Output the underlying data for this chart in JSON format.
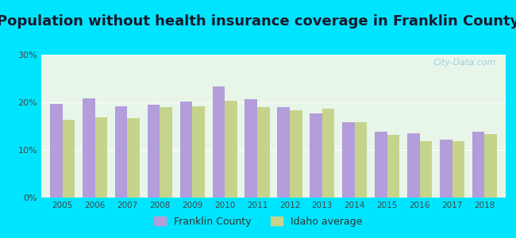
{
  "title": "Population without health insurance coverage in Franklin County",
  "years": [
    2005,
    2006,
    2007,
    2008,
    2009,
    2010,
    2011,
    2012,
    2013,
    2014,
    2015,
    2016,
    2017,
    2018
  ],
  "franklin_county": [
    19.7,
    20.9,
    19.1,
    19.5,
    20.2,
    23.3,
    20.7,
    19.0,
    17.7,
    15.9,
    13.8,
    13.5,
    12.2,
    13.8
  ],
  "idaho_average": [
    16.4,
    16.8,
    16.6,
    19.0,
    19.2,
    20.4,
    19.0,
    18.4,
    18.7,
    15.8,
    13.2,
    11.9,
    11.9,
    13.3
  ],
  "franklin_color": "#b39ddb",
  "idaho_color": "#c5d48a",
  "bg_outer": "#00e5ff",
  "bg_inner": "#e8f5e9",
  "ylim": [
    0,
    30
  ],
  "yticks": [
    0,
    10,
    20,
    30
  ],
  "ytick_labels": [
    "0%",
    "10%",
    "20%",
    "30%"
  ],
  "bar_width": 0.38,
  "title_fontsize": 13,
  "title_color": "#1a1a2e",
  "watermark": "City-Data.com",
  "watermark_color": "#90cad8"
}
